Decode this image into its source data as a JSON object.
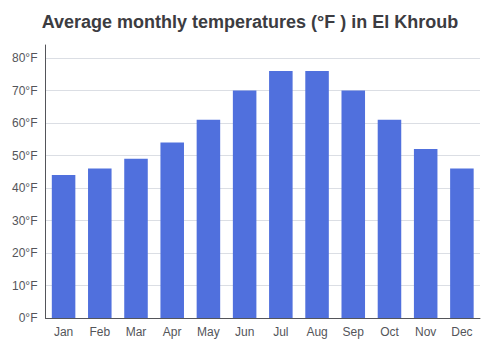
{
  "chart_data": {
    "type": "bar",
    "title": "Average monthly temperatures (°F ) in El Khroub",
    "categories": [
      "Jan",
      "Feb",
      "Mar",
      "Apr",
      "May",
      "Jun",
      "Jul",
      "Aug",
      "Sep",
      "Oct",
      "Nov",
      "Dec"
    ],
    "values": [
      44,
      46,
      49,
      54,
      61,
      70,
      76,
      76,
      70,
      61,
      52,
      46
    ],
    "ylim": [
      0,
      84
    ],
    "yticks": [
      {
        "value": 0,
        "label": "0°F"
      },
      {
        "value": 10,
        "label": "10°F"
      },
      {
        "value": 20,
        "label": "20°F"
      },
      {
        "value": 30,
        "label": "30°F"
      },
      {
        "value": 40,
        "label": "40°F"
      },
      {
        "value": 50,
        "label": "50°F"
      },
      {
        "value": 60,
        "label": "60°F"
      },
      {
        "value": 70,
        "label": "70°F"
      },
      {
        "value": 80,
        "label": "80°F"
      }
    ],
    "grid": true
  }
}
